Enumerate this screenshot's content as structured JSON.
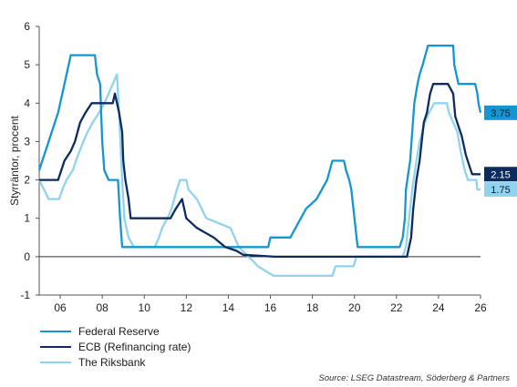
{
  "chart_data": {
    "type": "line",
    "ylabel": "Styrräntor, procent",
    "ylim": [
      -1,
      6
    ],
    "xlim": [
      2005,
      2026
    ],
    "yticks": [
      -1,
      0,
      1,
      2,
      3,
      4,
      5,
      6
    ],
    "xticks": [
      {
        "value": 2006,
        "label": "06"
      },
      {
        "value": 2008,
        "label": "08"
      },
      {
        "value": 2010,
        "label": "10"
      },
      {
        "value": 2012,
        "label": "12"
      },
      {
        "value": 2014,
        "label": "14"
      },
      {
        "value": 2016,
        "label": "16"
      },
      {
        "value": 2018,
        "label": "18"
      },
      {
        "value": 2020,
        "label": "20"
      },
      {
        "value": 2022,
        "label": "22"
      },
      {
        "value": 2024,
        "label": "24"
      },
      {
        "value": 2026,
        "label": "26"
      }
    ],
    "grid": false,
    "legend_position": "bottom-left",
    "series": [
      {
        "name": "Federal Reserve",
        "color": "#1596d2",
        "end_label": "3.75",
        "points": [
          [
            2005.0,
            2.25
          ],
          [
            2005.3,
            2.75
          ],
          [
            2005.6,
            3.25
          ],
          [
            2005.9,
            3.75
          ],
          [
            2006.2,
            4.5
          ],
          [
            2006.5,
            5.25
          ],
          [
            2007.65,
            5.25
          ],
          [
            2007.75,
            4.75
          ],
          [
            2007.9,
            4.5
          ],
          [
            2008.0,
            3.0
          ],
          [
            2008.1,
            2.25
          ],
          [
            2008.3,
            2.0
          ],
          [
            2008.75,
            2.0
          ],
          [
            2008.85,
            1.0
          ],
          [
            2008.95,
            0.25
          ],
          [
            2015.9,
            0.25
          ],
          [
            2016.0,
            0.5
          ],
          [
            2016.95,
            0.5
          ],
          [
            2017.2,
            0.75
          ],
          [
            2017.45,
            1.0
          ],
          [
            2017.7,
            1.25
          ],
          [
            2018.2,
            1.5
          ],
          [
            2018.45,
            1.75
          ],
          [
            2018.7,
            2.0
          ],
          [
            2018.95,
            2.5
          ],
          [
            2019.5,
            2.5
          ],
          [
            2019.6,
            2.25
          ],
          [
            2019.75,
            2.0
          ],
          [
            2019.85,
            1.75
          ],
          [
            2020.15,
            0.25
          ],
          [
            2022.15,
            0.25
          ],
          [
            2022.3,
            0.5
          ],
          [
            2022.4,
            1.0
          ],
          [
            2022.45,
            1.75
          ],
          [
            2022.65,
            2.5
          ],
          [
            2022.75,
            3.25
          ],
          [
            2022.85,
            4.0
          ],
          [
            2023.0,
            4.5
          ],
          [
            2023.1,
            4.75
          ],
          [
            2023.25,
            5.0
          ],
          [
            2023.5,
            5.5
          ],
          [
            2024.7,
            5.5
          ],
          [
            2024.75,
            5.0
          ],
          [
            2024.85,
            4.75
          ],
          [
            2024.95,
            4.5
          ],
          [
            2025.75,
            4.5
          ],
          [
            2025.85,
            4.25
          ],
          [
            2025.9,
            4.0
          ],
          [
            2026.0,
            3.75
          ]
        ]
      },
      {
        "name": "ECB (Refinancing rate)",
        "color": "#0d2b5e",
        "end_label": "2.15",
        "points": [
          [
            2005.0,
            2.0
          ],
          [
            2005.9,
            2.0
          ],
          [
            2006.2,
            2.5
          ],
          [
            2006.5,
            2.75
          ],
          [
            2006.7,
            3.0
          ],
          [
            2006.95,
            3.5
          ],
          [
            2007.2,
            3.75
          ],
          [
            2007.5,
            4.0
          ],
          [
            2008.5,
            4.0
          ],
          [
            2008.6,
            4.25
          ],
          [
            2008.8,
            3.75
          ],
          [
            2008.95,
            3.25
          ],
          [
            2009.0,
            2.5
          ],
          [
            2009.1,
            2.0
          ],
          [
            2009.25,
            1.5
          ],
          [
            2009.35,
            1.0
          ],
          [
            2011.25,
            1.0
          ],
          [
            2011.5,
            1.25
          ],
          [
            2011.8,
            1.5
          ],
          [
            2011.9,
            1.25
          ],
          [
            2012.0,
            1.0
          ],
          [
            2012.5,
            0.75
          ],
          [
            2013.3,
            0.5
          ],
          [
            2013.85,
            0.25
          ],
          [
            2014.4,
            0.15
          ],
          [
            2014.7,
            0.05
          ],
          [
            2016.2,
            0.0
          ],
          [
            2022.5,
            0.0
          ],
          [
            2022.7,
            0.5
          ],
          [
            2022.8,
            1.25
          ],
          [
            2022.95,
            2.0
          ],
          [
            2023.1,
            2.5
          ],
          [
            2023.3,
            3.5
          ],
          [
            2023.45,
            3.75
          ],
          [
            2023.6,
            4.25
          ],
          [
            2023.75,
            4.5
          ],
          [
            2024.45,
            4.5
          ],
          [
            2024.7,
            4.25
          ],
          [
            2024.8,
            3.65
          ],
          [
            2024.95,
            3.4
          ],
          [
            2025.1,
            3.15
          ],
          [
            2025.2,
            2.9
          ],
          [
            2025.3,
            2.65
          ],
          [
            2025.45,
            2.4
          ],
          [
            2025.6,
            2.15
          ],
          [
            2026.0,
            2.15
          ]
        ]
      },
      {
        "name": "The Riksbank",
        "color": "#8fd3ee",
        "end_label": "1.75",
        "points": [
          [
            2005.0,
            2.0
          ],
          [
            2005.45,
            1.5
          ],
          [
            2005.95,
            1.5
          ],
          [
            2006.1,
            1.75
          ],
          [
            2006.3,
            2.0
          ],
          [
            2006.6,
            2.25
          ],
          [
            2006.75,
            2.5
          ],
          [
            2007.1,
            3.0
          ],
          [
            2007.3,
            3.25
          ],
          [
            2007.55,
            3.5
          ],
          [
            2007.85,
            3.75
          ],
          [
            2008.1,
            4.0
          ],
          [
            2008.3,
            4.25
          ],
          [
            2008.7,
            4.75
          ],
          [
            2008.8,
            3.75
          ],
          [
            2008.95,
            2.0
          ],
          [
            2009.05,
            1.0
          ],
          [
            2009.25,
            0.5
          ],
          [
            2009.5,
            0.25
          ],
          [
            2010.5,
            0.25
          ],
          [
            2010.7,
            0.5
          ],
          [
            2010.85,
            0.75
          ],
          [
            2011.1,
            1.0
          ],
          [
            2011.3,
            1.25
          ],
          [
            2011.55,
            1.75
          ],
          [
            2011.7,
            2.0
          ],
          [
            2012.0,
            2.0
          ],
          [
            2012.1,
            1.75
          ],
          [
            2012.5,
            1.5
          ],
          [
            2012.95,
            1.0
          ],
          [
            2014.1,
            0.75
          ],
          [
            2014.5,
            0.25
          ],
          [
            2014.95,
            0.0
          ],
          [
            2015.15,
            -0.1
          ],
          [
            2015.4,
            -0.25
          ],
          [
            2015.7,
            -0.35
          ],
          [
            2016.15,
            -0.5
          ],
          [
            2018.95,
            -0.5
          ],
          [
            2019.1,
            -0.25
          ],
          [
            2019.95,
            -0.25
          ],
          [
            2020.1,
            0.0
          ],
          [
            2022.3,
            0.0
          ],
          [
            2022.45,
            0.25
          ],
          [
            2022.55,
            0.75
          ],
          [
            2022.75,
            1.75
          ],
          [
            2022.95,
            2.5
          ],
          [
            2023.1,
            3.0
          ],
          [
            2023.35,
            3.5
          ],
          [
            2023.55,
            3.75
          ],
          [
            2023.8,
            4.0
          ],
          [
            2024.4,
            4.0
          ],
          [
            2024.5,
            3.75
          ],
          [
            2024.7,
            3.5
          ],
          [
            2024.9,
            3.25
          ],
          [
            2025.05,
            2.75
          ],
          [
            2025.15,
            2.5
          ],
          [
            2025.25,
            2.25
          ],
          [
            2025.4,
            2.0
          ],
          [
            2025.8,
            2.0
          ],
          [
            2025.85,
            1.75
          ],
          [
            2026.0,
            1.75
          ]
        ]
      }
    ]
  },
  "source": "Source: LSEG Datastream, Söderberg & Partners"
}
